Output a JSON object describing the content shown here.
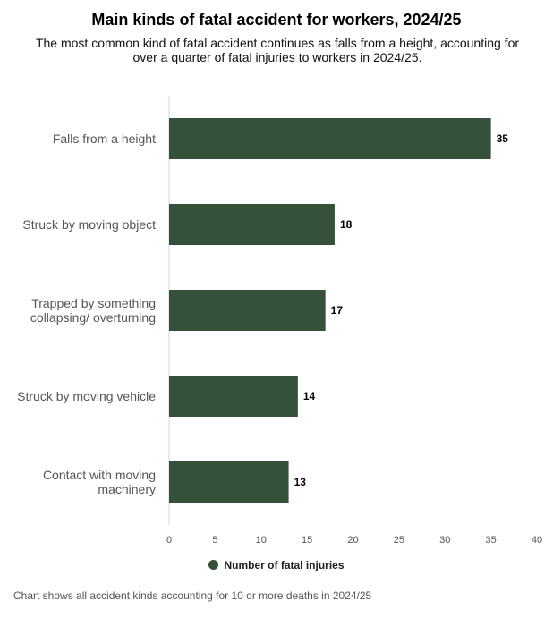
{
  "title": "Main kinds of fatal accident for workers, 2024/25",
  "subtitle": "The most common kind of fatal accident continues as falls from a height, accounting for over a quarter of fatal injuries to workers in 2024/25.",
  "footnote": "Chart shows all accident kinds accounting for 10 or more deaths in 2024/25",
  "colors": {
    "bar": "#36513a",
    "axis": "#ccd6eb"
  },
  "chart_data": {
    "type": "bar",
    "orientation": "horizontal",
    "categories": [
      [
        "Falls from a height"
      ],
      [
        "Struck by moving object"
      ],
      [
        "Trapped by something",
        "collapsing/ overturning"
      ],
      [
        "Struck by moving vehicle"
      ],
      [
        "Contact with moving",
        "machinery"
      ]
    ],
    "series": [
      {
        "name": "Number of fatal injuries",
        "values": [
          35,
          18,
          17,
          14,
          13
        ]
      }
    ],
    "xticks": [
      0,
      5,
      10,
      15,
      20,
      25,
      30,
      35,
      40
    ],
    "xlim": [
      0,
      40
    ],
    "grid": false,
    "legend": "bottom-center",
    "data_labels": true
  }
}
